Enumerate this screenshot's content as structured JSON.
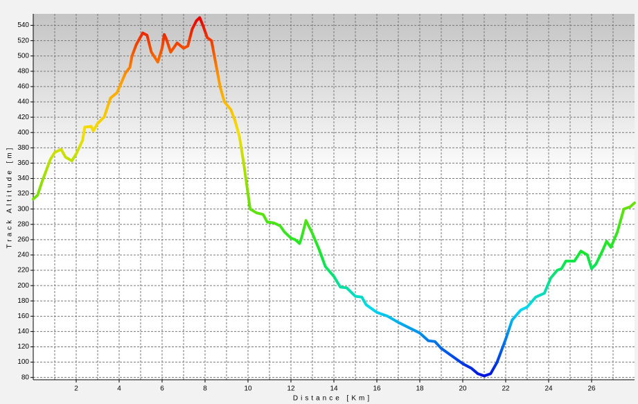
{
  "chart_data": {
    "type": "line",
    "x_label": "Distance [Km]",
    "y_label": "Track Altitude [m]",
    "xlim": [
      0,
      28
    ],
    "ylim": [
      77,
      555
    ],
    "xticks": [
      2,
      4,
      6,
      8,
      10,
      12,
      14,
      16,
      18,
      20,
      22,
      24,
      26
    ],
    "xminor": [
      1,
      3,
      5,
      7,
      9,
      11,
      13,
      15,
      17,
      19,
      21,
      23,
      25,
      27
    ],
    "yticks": [
      80,
      100,
      120,
      140,
      160,
      180,
      200,
      220,
      240,
      260,
      280,
      300,
      320,
      340,
      360,
      380,
      400,
      420,
      440,
      460,
      480,
      500,
      520,
      540
    ],
    "grid": true,
    "color_scale": [
      {
        "value": 80,
        "color": "#0010e0"
      },
      {
        "value": 170,
        "color": "#00d8f0"
      },
      {
        "value": 240,
        "color": "#10e830"
      },
      {
        "value": 320,
        "color": "#7ee000"
      },
      {
        "value": 400,
        "color": "#f4e000"
      },
      {
        "value": 470,
        "color": "#ff9a00"
      },
      {
        "value": 550,
        "color": "#e80000"
      }
    ],
    "x": [
      0,
      0.2,
      0.4,
      0.6,
      0.8,
      1.0,
      1.3,
      1.5,
      1.8,
      2.0,
      2.3,
      2.4,
      2.7,
      2.8,
      3.0,
      3.3,
      3.6,
      3.9,
      4.1,
      4.3,
      4.5,
      4.6,
      4.8,
      5.0,
      5.1,
      5.3,
      5.5,
      5.8,
      6.0,
      6.1,
      6.2,
      6.4,
      6.7,
      7.0,
      7.2,
      7.4,
      7.6,
      7.75,
      7.9,
      8.1,
      8.3,
      8.5,
      8.7,
      8.9,
      9.2,
      9.4,
      9.6,
      9.8,
      10.0,
      10.1,
      10.4,
      10.7,
      10.9,
      11.2,
      11.5,
      11.7,
      12.0,
      12.2,
      12.4,
      12.5,
      12.7,
      13.0,
      13.3,
      13.6,
      14.0,
      14.3,
      14.6,
      15.0,
      15.3,
      15.5,
      16.0,
      16.5,
      17.0,
      17.5,
      18.0,
      18.4,
      18.7,
      19.0,
      19.5,
      20.0,
      20.4,
      20.7,
      21.0,
      21.3,
      21.6,
      22.0,
      22.3,
      22.7,
      23.0,
      23.4,
      23.8,
      24.1,
      24.4,
      24.6,
      24.8,
      25.2,
      25.5,
      25.8,
      26.0,
      26.2,
      26.5,
      26.7,
      26.9,
      27.2,
      27.5,
      27.8,
      28.0
    ],
    "values": [
      313,
      318,
      335,
      350,
      365,
      374,
      378,
      368,
      363,
      372,
      390,
      407,
      408,
      402,
      412,
      420,
      445,
      452,
      465,
      478,
      485,
      500,
      515,
      525,
      530,
      527,
      505,
      492,
      510,
      528,
      522,
      505,
      517,
      510,
      513,
      535,
      546,
      550,
      540,
      524,
      520,
      490,
      460,
      440,
      430,
      415,
      395,
      360,
      320,
      300,
      295,
      293,
      283,
      282,
      278,
      270,
      262,
      260,
      255,
      263,
      285,
      268,
      248,
      225,
      212,
      198,
      197,
      186,
      185,
      175,
      165,
      160,
      152,
      145,
      138,
      128,
      127,
      118,
      108,
      98,
      92,
      85,
      82,
      85,
      100,
      130,
      155,
      168,
      172,
      185,
      190,
      210,
      220,
      222,
      232,
      232,
      245,
      240,
      222,
      228,
      245,
      258,
      250,
      270,
      300,
      303,
      308
    ]
  }
}
